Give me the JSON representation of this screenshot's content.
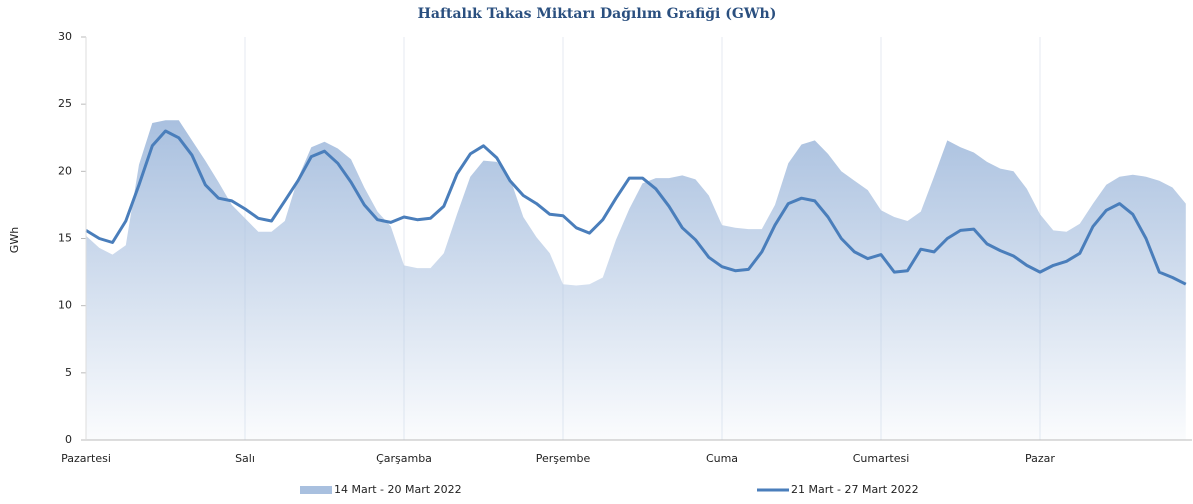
{
  "chart_data": {
    "type": "line",
    "title": "Haftalık Takas Miktarı Dağılım Grafiği (GWh)",
    "y_label": "GWh",
    "categories": [
      "Pazartesi",
      null,
      null,
      null,
      null,
      null,
      null,
      null,
      null,
      null,
      null,
      null,
      "Salı",
      null,
      null,
      null,
      null,
      null,
      null,
      null,
      null,
      null,
      null,
      null,
      "Çarşamba",
      null,
      null,
      null,
      null,
      null,
      null,
      null,
      null,
      null,
      null,
      null,
      "Perşembe",
      null,
      null,
      null,
      null,
      null,
      null,
      null,
      null,
      null,
      null,
      null,
      "Cuma",
      null,
      null,
      null,
      null,
      null,
      null,
      null,
      null,
      null,
      null,
      null,
      "Cumartesi",
      null,
      null,
      null,
      null,
      null,
      null,
      null,
      null,
      null,
      null,
      null,
      "Pazar",
      null,
      null,
      null,
      null,
      null,
      null,
      null,
      null,
      null,
      null,
      null
    ],
    "series": [
      {
        "name": "14 Mart - 20 Mart 2022",
        "type": "area",
        "color": "#a9c0df",
        "values": [
          15.2,
          14.3,
          13.8,
          14.5,
          20.5,
          23.6,
          23.8,
          23.8,
          22.3,
          20.8,
          19.2,
          17.5,
          16.5,
          15.5,
          15.5,
          16.3,
          19.5,
          21.8,
          22.2,
          21.7,
          20.9,
          18.8,
          17,
          15.9,
          13,
          12.8,
          12.8,
          13.9,
          16.8,
          19.6,
          20.8,
          20.7,
          19.5,
          16.6,
          15.1,
          13.9,
          11.6,
          11.5,
          11.6,
          12.1,
          14.9,
          17.2,
          19.1,
          19.5,
          19.5,
          19.7,
          19.4,
          18.2,
          16,
          15.8,
          15.7,
          15.7,
          17.5,
          20.6,
          22,
          22.3,
          21.3,
          20,
          19.3,
          18.6,
          17.1,
          16.6,
          16.3,
          17,
          19.6,
          22.3,
          21.8,
          21.4,
          20.7,
          20.2,
          20,
          18.7,
          16.8,
          15.6,
          15.5,
          16.1,
          17.6,
          19,
          19.6,
          19.75,
          19.6,
          19.3,
          18.8,
          17.6
        ]
      },
      {
        "name": "21 Mart - 27 Mart 2022",
        "type": "line",
        "color": "#4a7ebb",
        "values": [
          15.6,
          15.0,
          14.7,
          16.3,
          19.0,
          21.9,
          23.0,
          22.5,
          21.2,
          19.0,
          18.0,
          17.8,
          17.2,
          16.5,
          16.3,
          17.8,
          19.3,
          21.1,
          21.5,
          20.6,
          19.2,
          17.5,
          16.4,
          16.2,
          16.6,
          16.4,
          16.5,
          17.4,
          19.8,
          21.3,
          21.9,
          21.0,
          19.3,
          18.2,
          17.6,
          16.8,
          16.7,
          15.8,
          15.4,
          16.4,
          18.0,
          19.5,
          19.5,
          18.7,
          17.4,
          15.8,
          14.9,
          13.6,
          12.9,
          12.6,
          12.7,
          14.0,
          16.0,
          17.6,
          18.0,
          17.8,
          16.6,
          15.0,
          14.0,
          13.5,
          13.8,
          12.5,
          12.6,
          14.2,
          14.0,
          15.0,
          15.6,
          15.7,
          14.6,
          14.1,
          13.7,
          13.0,
          12.5,
          13.0,
          13.3,
          13.9,
          15.9,
          17.1,
          17.6,
          16.8,
          15.0,
          12.5,
          12.1,
          11.6
        ]
      }
    ],
    "ylim": [
      0,
      30
    ],
    "yticks": [
      0,
      5,
      10,
      15,
      20,
      25,
      30
    ],
    "grid": true
  }
}
